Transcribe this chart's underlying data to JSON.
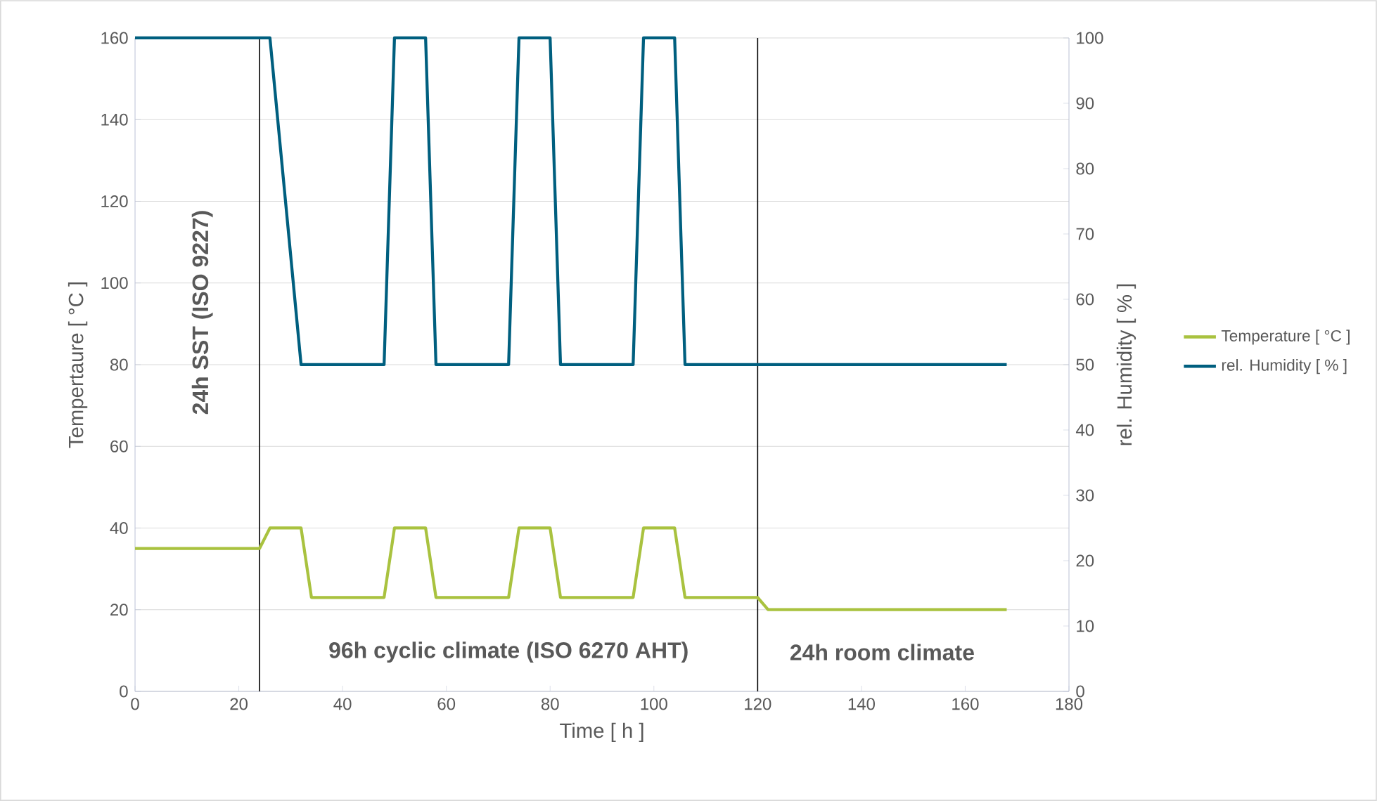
{
  "chart_data": {
    "type": "line",
    "xlabel": "Time  [ h ]",
    "ylabel": "Tempertaure  [ °C ]",
    "y2label": "rel. Humidity  [ % ]",
    "xlim": [
      0,
      180
    ],
    "xticks": [
      0,
      20,
      40,
      60,
      80,
      100,
      120,
      140,
      160,
      180
    ],
    "ylim": [
      0,
      160
    ],
    "yticks": [
      0,
      20,
      40,
      60,
      80,
      100,
      120,
      140,
      160
    ],
    "y2lim": [
      0,
      100
    ],
    "y2ticks": [
      0,
      10,
      20,
      30,
      40,
      50,
      60,
      70,
      80,
      90,
      100
    ],
    "grid": "y",
    "legend": "right",
    "marker": "none",
    "line_style": "solid",
    "series": [
      {
        "name": "Temperature  [ °C ]",
        "color": "#a9c23f",
        "x": [
          0,
          24,
          26,
          32,
          34,
          48,
          50,
          56,
          58,
          72,
          74,
          80,
          82,
          96,
          98,
          104,
          106,
          120,
          122,
          168
        ],
        "values": [
          35,
          35,
          40,
          40,
          23,
          23,
          40,
          40,
          23,
          23,
          40,
          40,
          23,
          23,
          40,
          40,
          23,
          23,
          20,
          20
        ]
      },
      {
        "name": "rel. Humidity  [ % ]",
        "color": "#005f7f",
        "axis": "y2",
        "x": [
          0,
          26,
          32,
          48,
          50,
          56,
          58,
          72,
          74,
          80,
          82,
          96,
          98,
          104,
          106,
          168
        ],
        "values": [
          100,
          100,
          50,
          50,
          100,
          100,
          50,
          50,
          100,
          100,
          50,
          50,
          100,
          100,
          50,
          50
        ]
      }
    ],
    "ref_lines": [
      {
        "axis": "x",
        "value": 24,
        "color": "#000000"
      },
      {
        "axis": "x",
        "value": 120,
        "color": "#000000"
      }
    ],
    "annotations": [
      "24h SST (ISO 9227)",
      "96h cyclic climate (ISO 6270 AHT)",
      "24h room climate"
    ]
  }
}
